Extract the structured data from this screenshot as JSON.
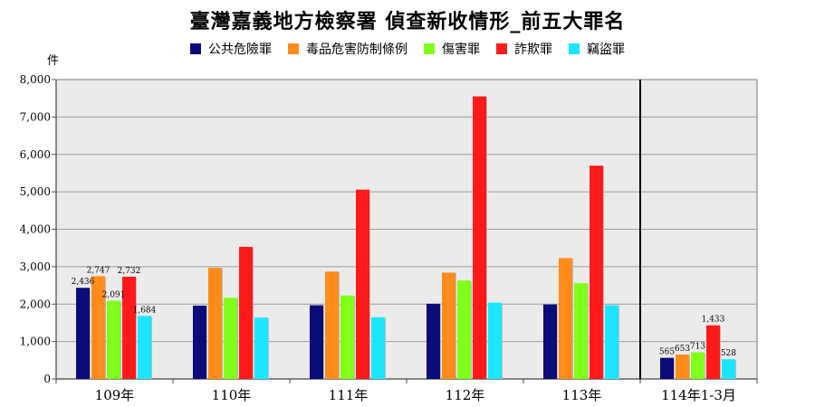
{
  "chart_data": {
    "type": "bar",
    "title": "臺灣嘉義地方檢察署 偵查新收情形_前五大罪名",
    "ylabel": "件",
    "xlabel": "",
    "ylim": [
      0,
      8000
    ],
    "yticks": [
      "0",
      "1,000",
      "2,000",
      "3,000",
      "4,000",
      "5,000",
      "6,000",
      "7,000",
      "8,000"
    ],
    "categories": [
      "109年",
      "110年",
      "111年",
      "112年",
      "113年",
      "114年1-3月"
    ],
    "grid": true,
    "legend_position": "top",
    "series": [
      {
        "name": "公共危險罪",
        "color": "#0b0b7a",
        "values": [
          2436,
          1960,
          1970,
          2010,
          1990,
          565
        ]
      },
      {
        "name": "毒品危害防制條例",
        "color": "#ff8c1a",
        "values": [
          2747,
          2970,
          2870,
          2840,
          3230,
          653
        ]
      },
      {
        "name": "傷害罪",
        "color": "#80ff1a",
        "values": [
          2091,
          2170,
          2230,
          2630,
          2560,
          713
        ]
      },
      {
        "name": "詐欺罪",
        "color": "#ff1a1a",
        "values": [
          2732,
          3530,
          5060,
          7550,
          5700,
          1433
        ]
      },
      {
        "name": "竊盜罪",
        "color": "#1ae6ff",
        "values": [
          1684,
          1640,
          1650,
          2040,
          1970,
          528
        ]
      }
    ],
    "data_labels": [
      {
        "series": 0,
        "category": 0,
        "text": "2,436"
      },
      {
        "series": 1,
        "category": 0,
        "text": "2,747"
      },
      {
        "series": 2,
        "category": 0,
        "text": "2,091"
      },
      {
        "series": 3,
        "category": 0,
        "text": "2,732"
      },
      {
        "series": 4,
        "category": 0,
        "text": "1,684"
      },
      {
        "series": 0,
        "category": 5,
        "text": "565"
      },
      {
        "series": 1,
        "category": 5,
        "text": "653"
      },
      {
        "series": 2,
        "category": 5,
        "text": "713"
      },
      {
        "series": 3,
        "category": 5,
        "text": "1,433"
      },
      {
        "series": 4,
        "category": 5,
        "text": "528"
      }
    ]
  }
}
